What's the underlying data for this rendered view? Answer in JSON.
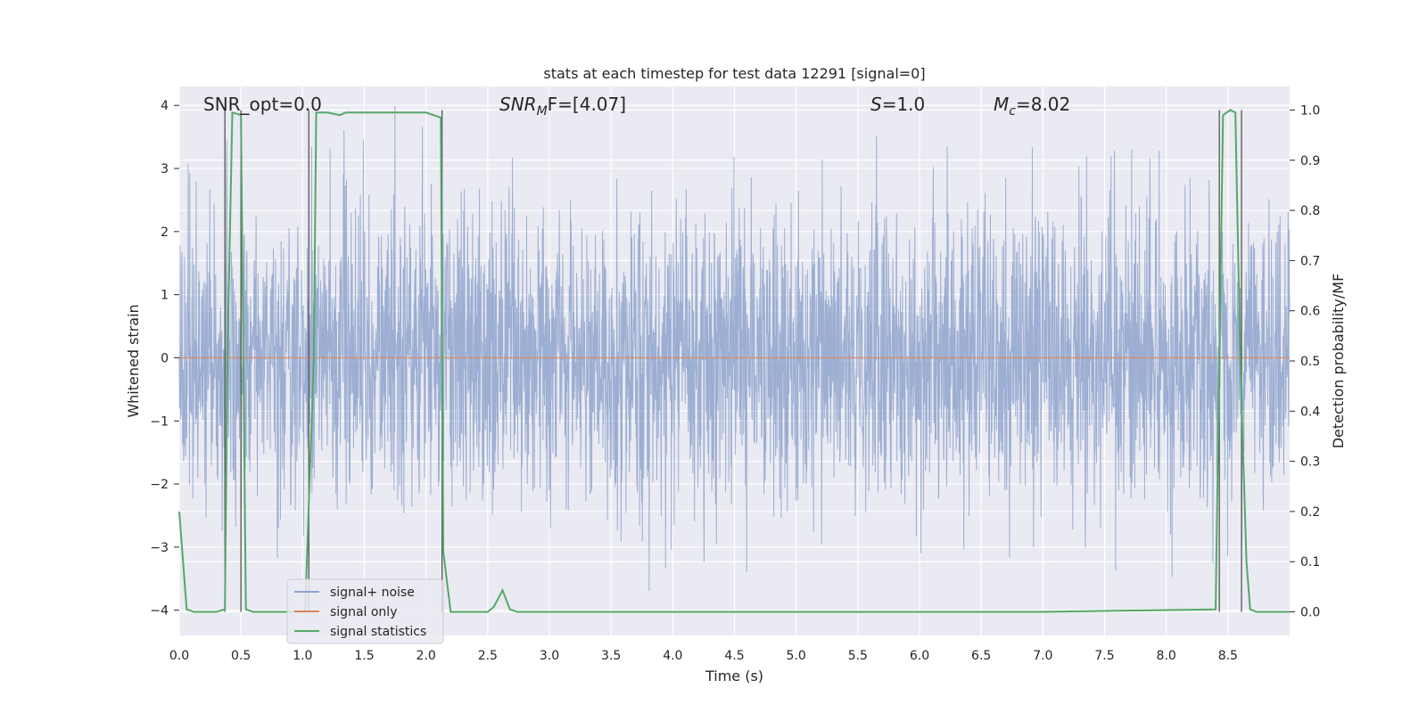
{
  "chart_data": {
    "type": "line",
    "title": "stats at each timestep for test data 12291 [signal=0]",
    "xlabel": "Time (s)",
    "ylabel_left": "Whitened strain",
    "ylabel_right": "Detection probability/MF",
    "xlim": [
      0,
      9.0
    ],
    "ylim_left": [
      -4.4,
      4.3
    ],
    "ylim_right": [
      -0.047,
      1.047
    ],
    "x_ticks": [
      "0.0",
      "0.5",
      "1.0",
      "1.5",
      "2.0",
      "2.5",
      "3.0",
      "3.5",
      "4.0",
      "4.5",
      "5.0",
      "5.5",
      "6.0",
      "6.5",
      "7.0",
      "7.5",
      "8.0",
      "8.5"
    ],
    "y_left_ticks": [
      "4",
      "3",
      "2",
      "1",
      "0",
      "−1",
      "−2",
      "−3",
      "−4"
    ],
    "y_right_ticks": [
      "1.0",
      "0.9",
      "0.8",
      "0.7",
      "0.6",
      "0.5",
      "0.4",
      "0.3",
      "0.2",
      "0.1",
      "0.0"
    ],
    "grid": true,
    "legend_position": "lower-left",
    "annotations": [
      {
        "main": "SNR_opt=0.0",
        "italic": false,
        "sub": "",
        "tail": ""
      },
      {
        "main": "SNR",
        "italic": true,
        "sub": "M",
        "tail": "F=[4.07]"
      },
      {
        "main": "S",
        "italic": true,
        "sub": "",
        "tail": "=1.0"
      },
      {
        "main": "M",
        "italic": true,
        "sub": "c",
        "tail": "=8.02"
      }
    ],
    "series": [
      {
        "name": "signal+ noise",
        "color": "#8ea3cc",
        "description": "whitened noise, amplitude roughly within [-4, 4]",
        "range": [
          -4.0,
          4.0
        ]
      },
      {
        "name": "signal only",
        "color": "#dd8452",
        "values": "constant 0 across full time range"
      },
      {
        "name": "signal statistics",
        "color": "#55a868",
        "x": [
          0.0,
          0.06,
          0.12,
          0.3,
          0.37,
          0.39,
          0.43,
          0.5,
          0.54,
          0.6,
          0.66,
          1.02,
          1.09,
          1.11,
          1.2,
          1.3,
          1.35,
          1.45,
          1.8,
          2.0,
          2.12,
          2.14,
          2.2,
          2.3,
          2.5,
          2.55,
          2.62,
          2.68,
          2.74,
          3.0,
          5.0,
          7.0,
          8.4,
          8.43,
          8.46,
          8.52,
          8.56,
          8.6,
          8.65,
          8.68,
          8.73,
          8.8,
          9.0
        ],
        "y": [
          0.2,
          0.005,
          0.0,
          0.0,
          0.005,
          0.5,
          0.995,
          0.99,
          0.005,
          0.0,
          0.0,
          0.0,
          0.5,
          0.995,
          0.995,
          0.99,
          0.995,
          0.995,
          0.995,
          0.995,
          0.985,
          0.12,
          0.0,
          0.0,
          0.0,
          0.01,
          0.043,
          0.005,
          0.0,
          0.0,
          0.0,
          0.0,
          0.005,
          0.5,
          0.99,
          1.0,
          0.995,
          0.5,
          0.1,
          0.005,
          0.0,
          0.0,
          0.0
        ]
      }
    ],
    "vertical_markers_x": [
      0.37,
      0.5,
      1.05,
      2.13,
      8.43,
      8.61
    ]
  }
}
